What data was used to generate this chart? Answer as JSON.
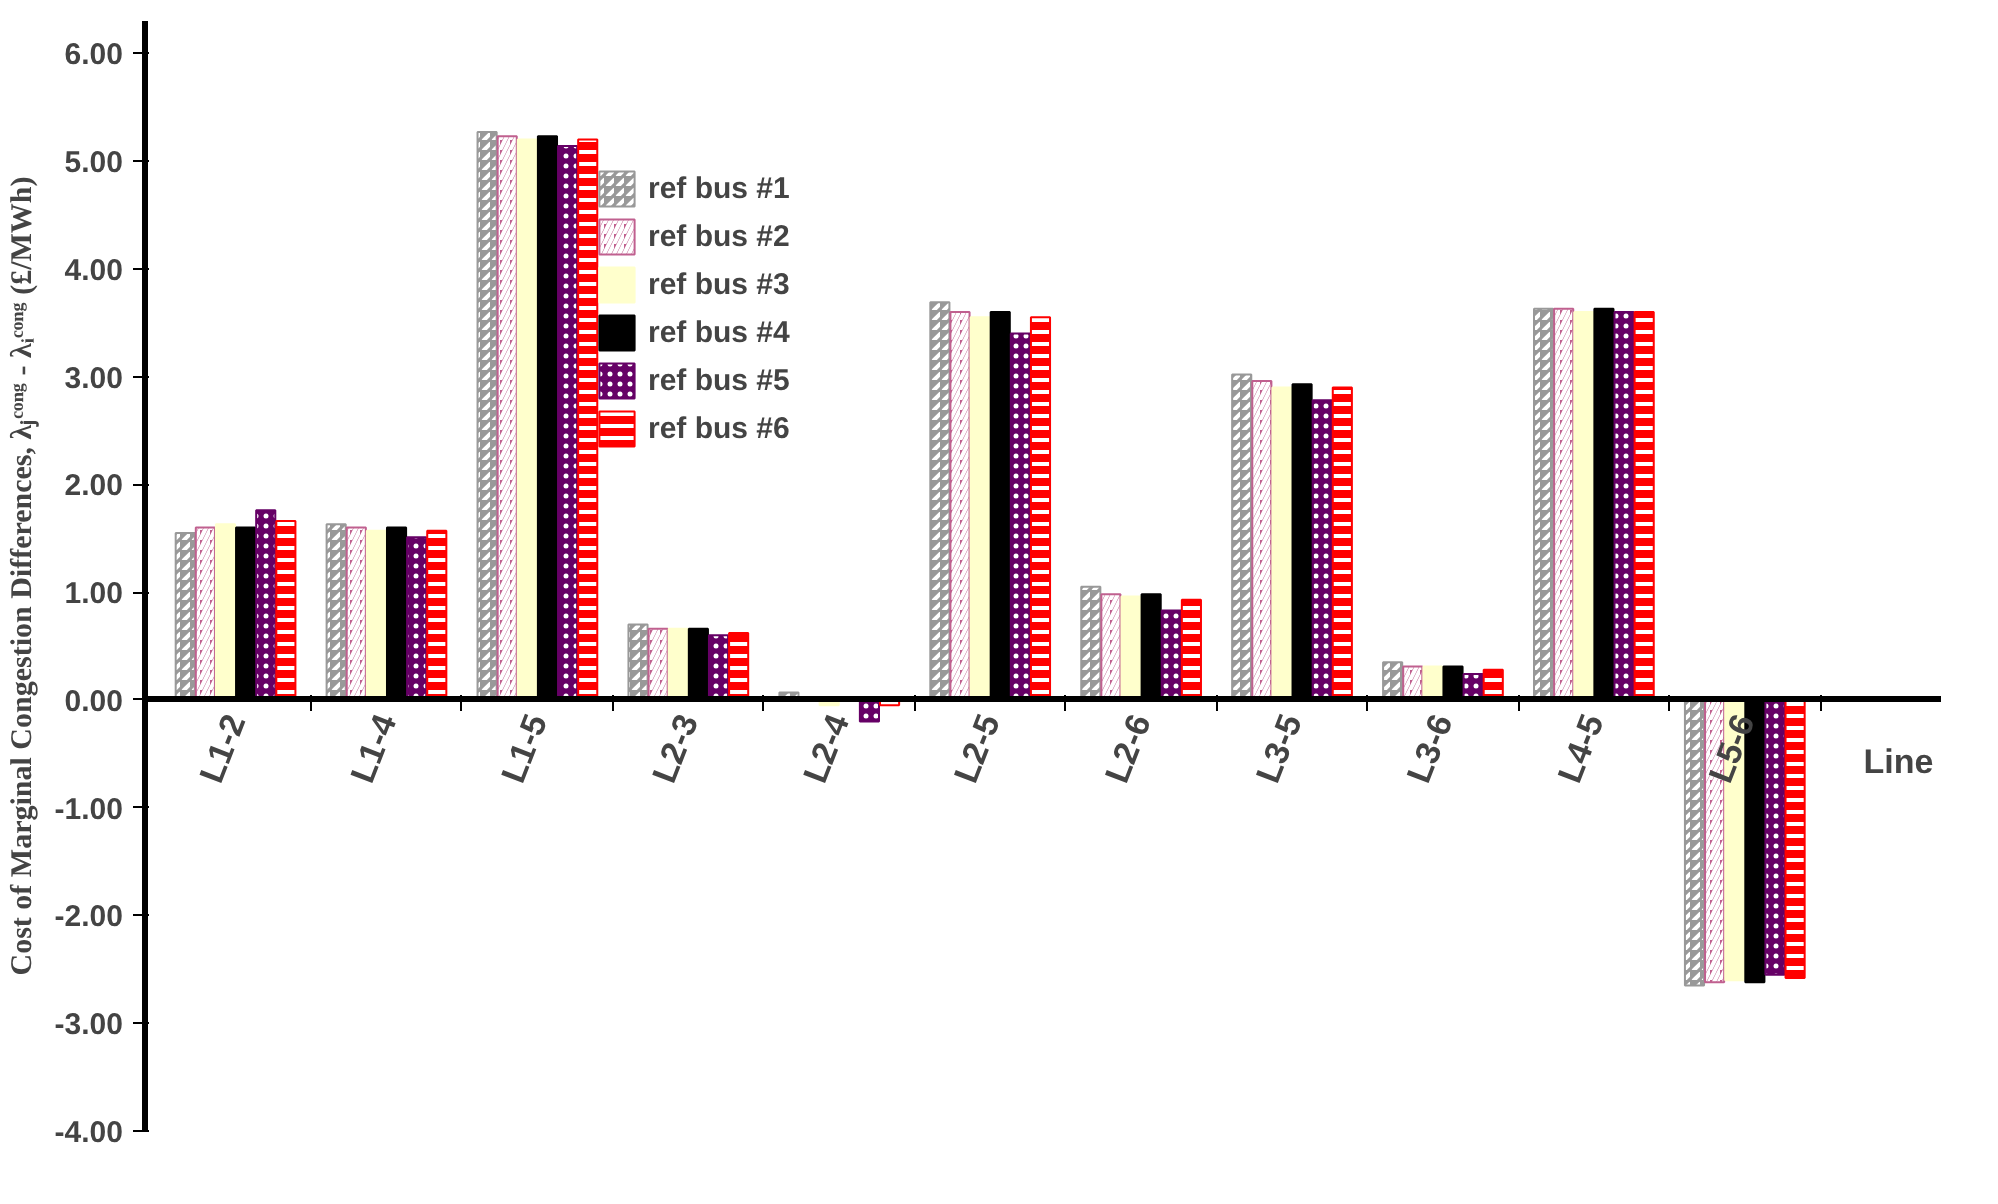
{
  "chart_data": {
    "type": "bar",
    "ylabel": "Cost of Marginal Congestion Differences, λⱼᶜᵒⁿᵍ - λᵢᶜᵒⁿᵍ (£/MWh)",
    "xlabel": "Line",
    "categories": [
      "L1-2",
      "L1-4",
      "L1-5",
      "L2-3",
      "L2-4",
      "L2-5",
      "L2-6",
      "L3-5",
      "L3-6",
      "L4-5",
      "L5-6"
    ],
    "series": [
      {
        "name": "ref bus #1",
        "color": "#999999",
        "values": [
          1.55,
          1.63,
          5.27,
          0.7,
          0.07,
          3.69,
          1.05,
          3.02,
          0.35,
          3.63,
          -2.65
        ]
      },
      {
        "name": "ref bus #2",
        "color": "#c0608f",
        "values": [
          1.6,
          1.6,
          5.23,
          0.66,
          0.0,
          3.6,
          0.98,
          2.96,
          0.31,
          3.63,
          -2.62
        ]
      },
      {
        "name": "ref bus #3",
        "color": "#ffffcc",
        "values": [
          1.63,
          1.57,
          5.2,
          0.66,
          -0.05,
          3.55,
          0.96,
          2.9,
          0.31,
          3.6,
          -2.6
        ]
      },
      {
        "name": "ref bus #4",
        "color": "#000000",
        "values": [
          1.6,
          1.6,
          5.23,
          0.66,
          0.0,
          3.6,
          0.98,
          2.93,
          0.31,
          3.63,
          -2.62
        ]
      },
      {
        "name": "ref bus #5",
        "color": "#660066",
        "values": [
          1.76,
          1.51,
          5.14,
          0.6,
          -0.2,
          3.4,
          0.83,
          2.78,
          0.24,
          3.6,
          -2.55
        ]
      },
      {
        "name": "ref bus #6",
        "color": "#ff0000",
        "values": [
          1.66,
          1.57,
          5.2,
          0.62,
          -0.05,
          3.55,
          0.93,
          2.9,
          0.28,
          3.6,
          -2.58
        ]
      }
    ],
    "ylim": [
      -4,
      6.3
    ],
    "yticks": [
      {
        "value": -4,
        "label": "-4.00"
      },
      {
        "value": -3,
        "label": "-3.00"
      },
      {
        "value": -2,
        "label": "-2.00"
      },
      {
        "value": -1,
        "label": "-1.00"
      },
      {
        "value": 0,
        "label": "0.00"
      },
      {
        "value": 1,
        "label": "1.00"
      },
      {
        "value": 2,
        "label": "2.00"
      },
      {
        "value": 3,
        "label": "3.00"
      },
      {
        "value": 4,
        "label": "4.00"
      },
      {
        "value": 5,
        "label": "5.00"
      },
      {
        "value": 6,
        "label": "6.00"
      }
    ],
    "legend": "top left",
    "grid": false
  }
}
